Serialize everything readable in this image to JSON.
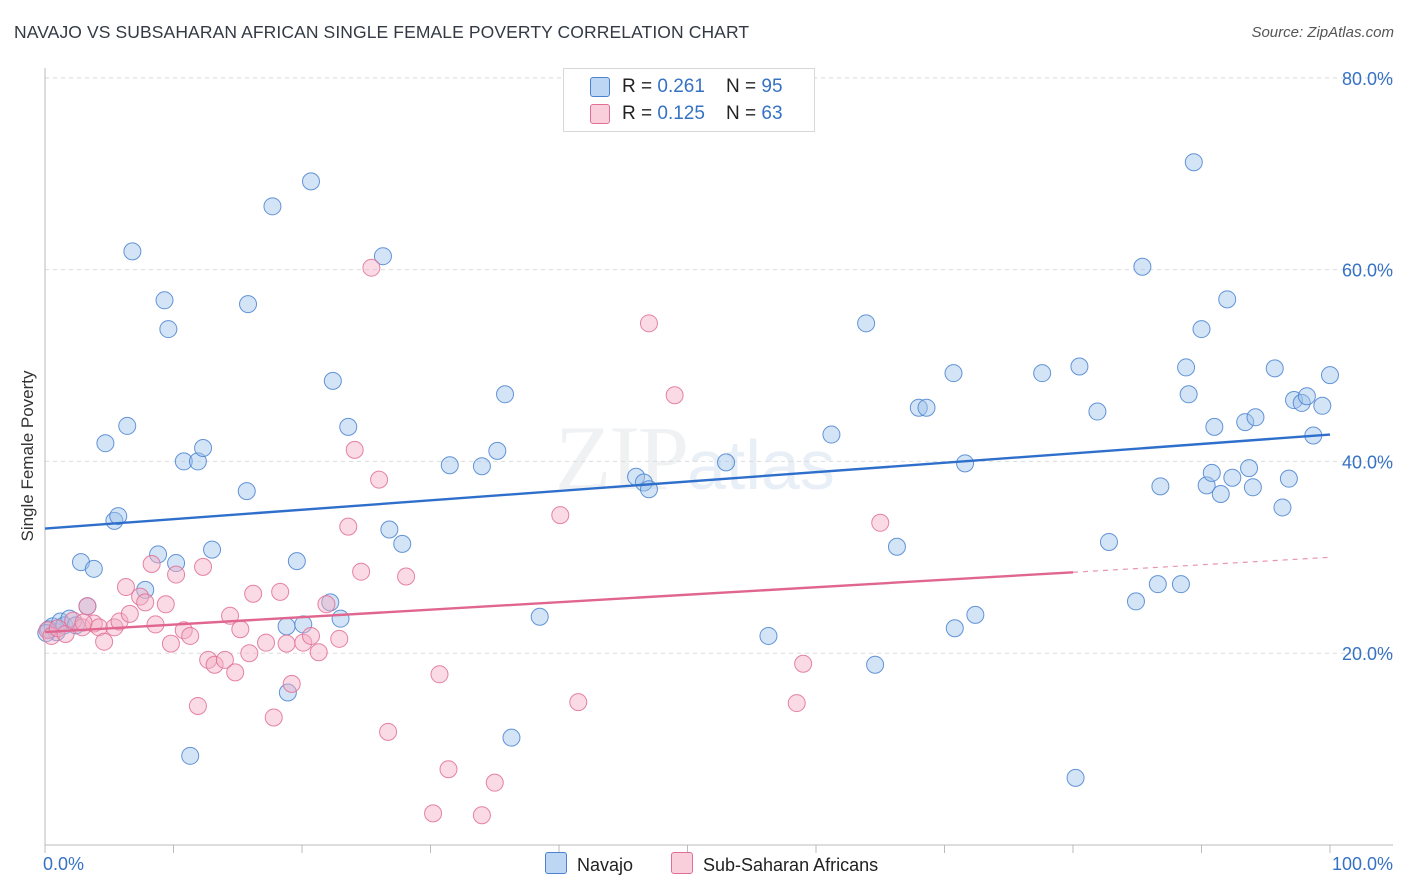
{
  "title": "NAVAJO VS SUBSAHARAN AFRICAN SINGLE FEMALE POVERTY CORRELATION CHART",
  "source": "Source: ZipAtlas.com",
  "watermark": {
    "zip": "ZIP",
    "atlas": "atlas"
  },
  "legend_top": [
    {
      "r_label": "R = ",
      "r_value": "0.261",
      "n_label": "N = ",
      "n_value": "95",
      "color": "#9ec3ec"
    },
    {
      "r_label": "R = ",
      "r_value": "0.125",
      "n_label": "N = ",
      "n_value": "63",
      "color": "#f4aec4"
    }
  ],
  "chart_data": {
    "type": "scatter",
    "title": "NAVAJO VS SUBSAHARAN AFRICAN SINGLE FEMALE POVERTY CORRELATION CHART",
    "xlabel": "",
    "ylabel": "Single Female Poverty",
    "xlim": [
      0,
      100
    ],
    "ylim": [
      0,
      80
    ],
    "x_tick_labels": [
      "0.0%",
      "100.0%"
    ],
    "y_tick_values": [
      20,
      40,
      60,
      80
    ],
    "y_tick_labels": [
      "20.0%",
      "40.0%",
      "60.0%",
      "80.0%"
    ],
    "grid": "horizontal dashed",
    "legend_placement": "top-center and bottom",
    "series": [
      {
        "name": "Navajo",
        "color": "#4a82d0",
        "fill": "#9ec3ec",
        "r": 0.261,
        "n": 95,
        "trend": {
          "x": [
            0,
            100
          ],
          "y": [
            33.0,
            42.8
          ],
          "dashed_from": null
        },
        "points": [
          [
            0.3,
            22.5
          ],
          [
            0.6,
            22.8
          ],
          [
            0.9,
            22.2
          ],
          [
            1.2,
            23.3
          ],
          [
            1.5,
            22.9
          ],
          [
            1.9,
            23.6
          ],
          [
            2.4,
            22.9
          ],
          [
            2.8,
            29.5
          ],
          [
            3.3,
            24.9
          ],
          [
            3.8,
            28.8
          ],
          [
            4.7,
            41.9
          ],
          [
            5.4,
            33.8
          ],
          [
            5.7,
            34.3
          ],
          [
            6.4,
            43.7
          ],
          [
            6.8,
            61.9
          ],
          [
            7.8,
            26.6
          ],
          [
            8.8,
            30.3
          ],
          [
            9.3,
            56.8
          ],
          [
            9.6,
            53.8
          ],
          [
            10.2,
            29.4
          ],
          [
            10.8,
            40.0
          ],
          [
            11.3,
            9.3
          ],
          [
            11.9,
            40.0
          ],
          [
            12.3,
            41.4
          ],
          [
            13.0,
            30.8
          ],
          [
            15.7,
            36.9
          ],
          [
            15.8,
            56.4
          ],
          [
            17.7,
            66.6
          ],
          [
            18.8,
            22.8
          ],
          [
            18.9,
            15.9
          ],
          [
            19.6,
            29.6
          ],
          [
            20.1,
            23.0
          ],
          [
            20.7,
            69.2
          ],
          [
            22.2,
            25.3
          ],
          [
            22.4,
            48.4
          ],
          [
            23.0,
            23.6
          ],
          [
            23.6,
            43.6
          ],
          [
            26.3,
            61.4
          ],
          [
            26.8,
            32.9
          ],
          [
            27.8,
            31.4
          ],
          [
            31.5,
            39.6
          ],
          [
            34.0,
            39.5
          ],
          [
            35.2,
            41.1
          ],
          [
            35.8,
            47.0
          ],
          [
            36.3,
            11.2
          ],
          [
            38.5,
            23.8
          ],
          [
            46.0,
            38.4
          ],
          [
            46.6,
            37.8
          ],
          [
            47.0,
            37.1
          ],
          [
            53.0,
            39.9
          ],
          [
            56.3,
            21.8
          ],
          [
            61.2,
            42.8
          ],
          [
            63.9,
            54.4
          ],
          [
            64.6,
            18.8
          ],
          [
            66.3,
            31.1
          ],
          [
            68.0,
            45.6
          ],
          [
            68.6,
            45.6
          ],
          [
            70.7,
            49.2
          ],
          [
            70.8,
            22.6
          ],
          [
            71.6,
            39.8
          ],
          [
            72.4,
            24.0
          ],
          [
            77.6,
            49.2
          ],
          [
            80.2,
            7.0
          ],
          [
            80.5,
            49.9
          ],
          [
            81.9,
            45.2
          ],
          [
            82.8,
            31.6
          ],
          [
            84.9,
            25.4
          ],
          [
            85.4,
            60.3
          ],
          [
            86.6,
            27.2
          ],
          [
            86.8,
            37.4
          ],
          [
            88.4,
            27.2
          ],
          [
            88.8,
            49.8
          ],
          [
            89.0,
            47.0
          ],
          [
            89.4,
            71.2
          ],
          [
            90.0,
            53.8
          ],
          [
            90.4,
            37.5
          ],
          [
            90.8,
            38.8
          ],
          [
            91.0,
            43.6
          ],
          [
            91.5,
            36.6
          ],
          [
            92.0,
            56.9
          ],
          [
            92.4,
            38.3
          ],
          [
            93.4,
            44.1
          ],
          [
            93.7,
            39.3
          ],
          [
            94.0,
            37.3
          ],
          [
            94.2,
            44.6
          ],
          [
            95.7,
            49.7
          ],
          [
            96.3,
            35.2
          ],
          [
            96.8,
            38.2
          ],
          [
            97.2,
            46.4
          ],
          [
            97.8,
            46.1
          ],
          [
            98.2,
            46.8
          ],
          [
            98.7,
            42.7
          ],
          [
            99.4,
            45.8
          ],
          [
            100.0,
            49.0
          ],
          [
            0.1,
            22.1
          ]
        ]
      },
      {
        "name": "Sub-Saharan Africans",
        "color": "#e06f97",
        "fill": "#f4aec4",
        "r": 0.125,
        "n": 63,
        "trend": {
          "x": [
            0,
            100
          ],
          "y": [
            22.2,
            30.0
          ],
          "dashed_from": 80
        },
        "points": [
          [
            0.2,
            22.4
          ],
          [
            0.5,
            21.8
          ],
          [
            1.0,
            22.6
          ],
          [
            1.6,
            22.0
          ],
          [
            2.2,
            23.4
          ],
          [
            2.9,
            22.7
          ],
          [
            3.3,
            24.9
          ],
          [
            3.8,
            23.1
          ],
          [
            4.2,
            22.7
          ],
          [
            4.6,
            21.2
          ],
          [
            5.4,
            22.7
          ],
          [
            5.8,
            23.3
          ],
          [
            6.3,
            26.9
          ],
          [
            6.6,
            24.1
          ],
          [
            7.4,
            25.9
          ],
          [
            7.8,
            25.3
          ],
          [
            8.3,
            29.3
          ],
          [
            8.6,
            23.0
          ],
          [
            9.4,
            25.1
          ],
          [
            9.8,
            21.0
          ],
          [
            10.2,
            28.2
          ],
          [
            10.8,
            22.4
          ],
          [
            11.3,
            21.8
          ],
          [
            11.9,
            14.5
          ],
          [
            12.3,
            29.0
          ],
          [
            12.7,
            19.3
          ],
          [
            13.2,
            18.8
          ],
          [
            14.0,
            19.3
          ],
          [
            14.4,
            23.9
          ],
          [
            14.8,
            18.0
          ],
          [
            15.2,
            22.5
          ],
          [
            15.9,
            20.0
          ],
          [
            16.2,
            26.2
          ],
          [
            17.2,
            21.1
          ],
          [
            17.8,
            13.3
          ],
          [
            18.3,
            26.4
          ],
          [
            18.8,
            21.0
          ],
          [
            19.2,
            16.8
          ],
          [
            20.1,
            21.1
          ],
          [
            20.7,
            21.8
          ],
          [
            21.3,
            20.1
          ],
          [
            21.9,
            25.1
          ],
          [
            22.9,
            21.5
          ],
          [
            23.6,
            33.2
          ],
          [
            24.1,
            41.2
          ],
          [
            24.6,
            28.5
          ],
          [
            25.4,
            60.2
          ],
          [
            26.0,
            38.1
          ],
          [
            26.7,
            11.8
          ],
          [
            28.1,
            28.0
          ],
          [
            30.2,
            3.3
          ],
          [
            30.7,
            17.8
          ],
          [
            31.4,
            7.9
          ],
          [
            34.0,
            3.1
          ],
          [
            35.0,
            6.5
          ],
          [
            40.1,
            34.4
          ],
          [
            41.5,
            14.9
          ],
          [
            47.0,
            54.4
          ],
          [
            49.0,
            46.9
          ],
          [
            58.5,
            14.8
          ],
          [
            59.0,
            18.9
          ],
          [
            65.0,
            33.6
          ],
          [
            3.0,
            23.2
          ]
        ]
      }
    ]
  },
  "legend_bottom": [
    {
      "label": "Navajo",
      "color": "#9ec3ec",
      "border": "#4a82d0"
    },
    {
      "label": "Sub-Saharan Africans",
      "color": "#f4aec4",
      "border": "#e06f97"
    }
  ]
}
